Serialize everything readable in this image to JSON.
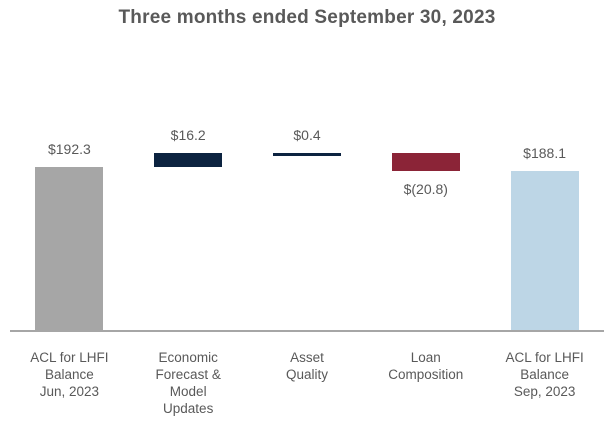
{
  "title": "Three months ended September 30, 2023",
  "colors": {
    "title_text": "#595959",
    "label_text": "#595959",
    "axis_line": "#a6a6a6",
    "beginning_balance_bar": "#a6a6a6",
    "increase_bar": "#0c2340",
    "decrease_bar": "#8b2437",
    "ending_balance_bar": "#bdd6e6",
    "background": "#ffffff"
  },
  "chart_data": {
    "type": "waterfall",
    "title": "Three months ended September 30, 2023",
    "xlabel": "",
    "ylabel": "",
    "ylim": [
      0,
      225
    ],
    "grid": false,
    "legend": false,
    "categories": [
      "ACL for LHFI Balance Jun, 2023",
      "Economic Forecast & Model Updates",
      "Asset Quality",
      "Loan Composition",
      "ACL for LHFI Balance Sep, 2023"
    ],
    "bars": [
      {
        "category_lines": [
          "ACL for LHFI",
          "Balance",
          "Jun, 2023"
        ],
        "value": 192.3,
        "label": "$192.3",
        "kind": "total",
        "color": "#a6a6a6",
        "label_position": "above"
      },
      {
        "category_lines": [
          "Economic",
          "Forecast &",
          "Model",
          "Updates"
        ],
        "value": 16.2,
        "label": "$16.2",
        "kind": "delta",
        "color": "#0c2340",
        "label_position": "above"
      },
      {
        "category_lines": [
          "Asset",
          "Quality"
        ],
        "value": 0.4,
        "label": "$0.4",
        "kind": "delta",
        "color": "#0c2340",
        "label_position": "above"
      },
      {
        "category_lines": [
          "Loan",
          "Composition"
        ],
        "value": -20.8,
        "label": "$(20.8)",
        "kind": "delta",
        "color": "#8b2437",
        "label_position": "below"
      },
      {
        "category_lines": [
          "ACL for LHFI",
          "Balance",
          "Sep, 2023"
        ],
        "value": 188.1,
        "label": "$188.1",
        "kind": "total",
        "color": "#bdd6e6",
        "label_position": "above"
      }
    ]
  }
}
